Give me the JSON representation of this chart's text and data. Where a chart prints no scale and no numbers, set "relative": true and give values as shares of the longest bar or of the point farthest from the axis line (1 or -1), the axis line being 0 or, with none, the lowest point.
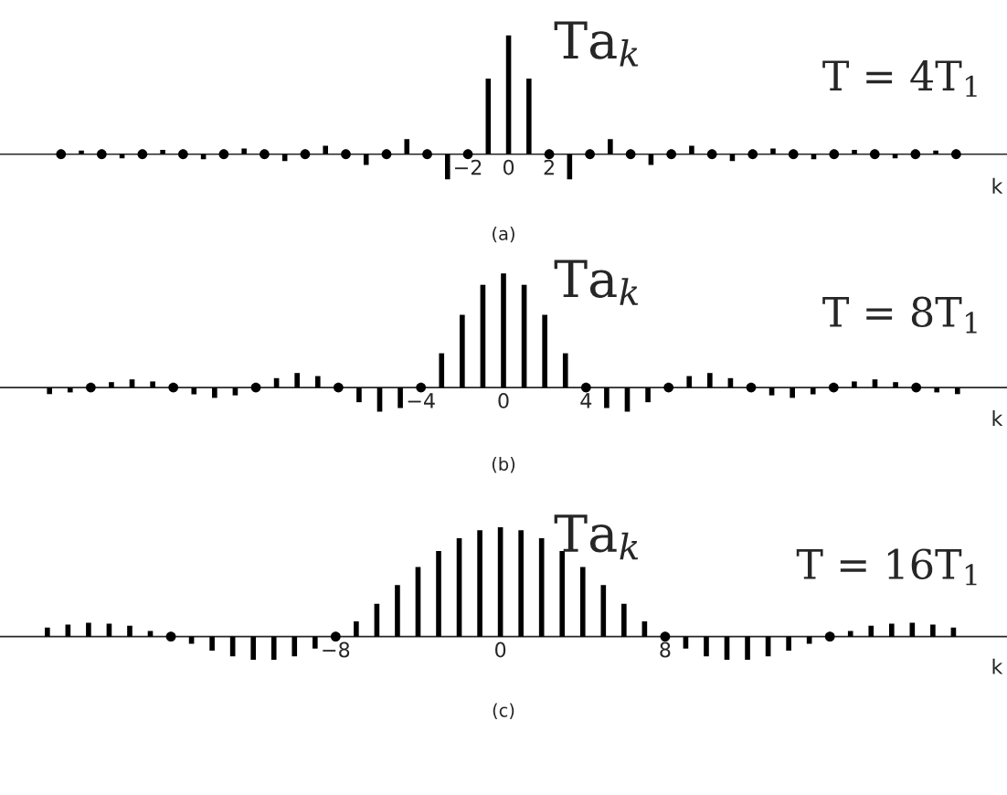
{
  "chart_data": [
    {
      "type": "bar",
      "relative": true,
      "xlabel": "k",
      "tick_labels": "x",
      "marker": "circle",
      "xlim": [
        -25,
        24.5
      ],
      "xticks": [
        {
          "value": -2,
          "label": "−2"
        },
        0,
        2
      ],
      "annotations": [
        "Ta$_{k}$",
        "T = 4T$_{1}$",
        "(a)"
      ],
      "series": [
        {
          "color": "#000000",
          "x": [
            -21,
            -19,
            -17,
            -15,
            -13,
            -11,
            -9,
            -7,
            -5,
            -3,
            -1,
            0,
            1,
            3,
            5,
            7,
            9,
            11,
            13,
            15,
            17,
            19,
            21
          ],
          "values": [
            0.03,
            -0.034,
            0.037,
            -0.042,
            0.049,
            -0.058,
            0.071,
            -0.091,
            0.127,
            -0.212,
            0.637,
            1,
            0.637,
            -0.212,
            0.127,
            -0.091,
            0.071,
            -0.058,
            0.049,
            -0.042,
            0.037,
            -0.034,
            0.03
          ]
        },
        {
          "type": "scatter",
          "color": "#000000",
          "x": [
            -22,
            -20,
            -18,
            -16,
            -14,
            -12,
            -10,
            -8,
            -6,
            -4,
            -2,
            2,
            4,
            6,
            8,
            10,
            12,
            14,
            16,
            18,
            20,
            22
          ],
          "values": [
            0,
            0,
            0,
            0,
            0,
            0,
            0,
            0,
            0,
            0,
            0,
            0,
            0,
            0,
            0,
            0,
            0,
            0,
            0,
            0,
            0,
            0
          ]
        }
      ]
    },
    {
      "type": "bar",
      "relative": true,
      "xlabel": "k",
      "tick_labels": "x",
      "marker": "circle",
      "xlim": [
        -24.4,
        24.4
      ],
      "xticks": [
        {
          "value": -4,
          "label": "−4"
        },
        0,
        4
      ],
      "annotations": [
        "Ta$_{k}$",
        "T = 8T$_{1}$",
        "(b)"
      ],
      "series": [
        {
          "color": "#000000",
          "x": [
            -22,
            -21,
            -19,
            -18,
            -17,
            -15,
            -14,
            -13,
            -11,
            -10,
            -9,
            -7,
            -6,
            -5,
            -3,
            -2,
            -1,
            0,
            1,
            2,
            3,
            5,
            6,
            7,
            9,
            10,
            11,
            13,
            14,
            15,
            17,
            18,
            19,
            21,
            22
          ],
          "values": [
            -0.058,
            -0.043,
            0.047,
            0.071,
            0.053,
            -0.06,
            -0.091,
            -0.069,
            0.082,
            0.127,
            0.1,
            -0.129,
            -0.212,
            -0.18,
            0.3,
            0.637,
            0.9,
            1,
            0.9,
            0.637,
            0.3,
            -0.18,
            -0.212,
            -0.129,
            0.1,
            0.127,
            0.082,
            -0.069,
            -0.091,
            -0.06,
            0.053,
            0.071,
            0.047,
            -0.043,
            -0.058
          ]
        },
        {
          "type": "scatter",
          "color": "#000000",
          "x": [
            -20,
            -16,
            -12,
            -8,
            -4,
            4,
            8,
            12,
            16,
            20
          ],
          "values": [
            0,
            0,
            0,
            0,
            0,
            0,
            0,
            0,
            0,
            0
          ]
        }
      ]
    },
    {
      "type": "bar",
      "relative": true,
      "xlabel": "k",
      "tick_labels": "x",
      "marker": "circle",
      "xlim": [
        -24.3,
        24.6
      ],
      "xticks": [
        {
          "value": -8,
          "label": "−8"
        },
        0,
        8
      ],
      "annotations": [
        "Ta$_{k}$",
        "T = 16T$_{1}$",
        "(c)"
      ],
      "series": [
        {
          "color": "#000000",
          "x": [
            -22,
            -21,
            -20,
            -19,
            -18,
            -17,
            -15,
            -14,
            -13,
            -12,
            -11,
            -10,
            -9,
            -7,
            -6,
            -5,
            -4,
            -3,
            -2,
            -1,
            0,
            1,
            2,
            3,
            4,
            5,
            6,
            7,
            9,
            10,
            11,
            12,
            13,
            14,
            15,
            17,
            18,
            19,
            20,
            21,
            22
          ],
          "values": [
            0.082,
            0.109,
            0.127,
            0.119,
            0.1,
            0.052,
            -0.066,
            -0.129,
            -0.18,
            -0.212,
            -0.213,
            -0.18,
            -0.109,
            0.139,
            0.3,
            0.471,
            0.637,
            0.784,
            0.9,
            0.974,
            1,
            0.974,
            0.9,
            0.784,
            0.637,
            0.471,
            0.3,
            0.139,
            -0.109,
            -0.18,
            -0.213,
            -0.212,
            -0.18,
            -0.129,
            -0.066,
            0.052,
            0.1,
            0.119,
            0.127,
            0.109,
            0.082
          ]
        },
        {
          "type": "scatter",
          "color": "#000000",
          "x": [
            -16,
            -8,
            8,
            16
          ],
          "values": [
            0,
            0,
            0,
            0
          ]
        }
      ]
    }
  ]
}
